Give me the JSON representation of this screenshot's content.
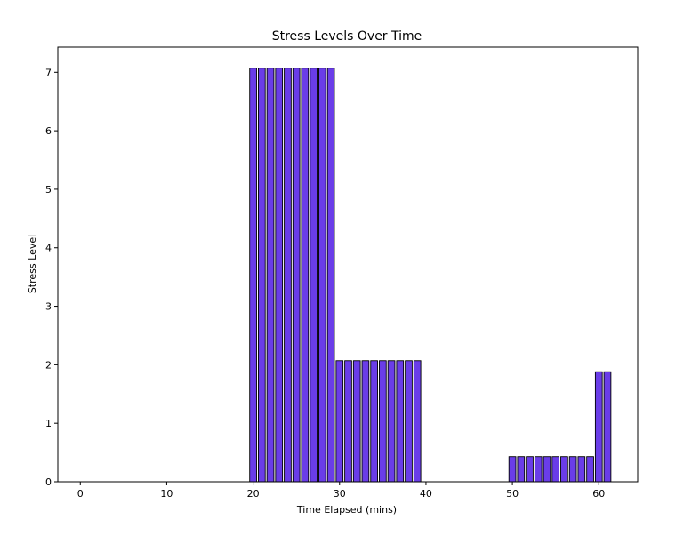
{
  "chart_data": {
    "type": "bar",
    "title": "Stress Levels Over Time",
    "xlabel": "Time Elapsed (mins)",
    "ylabel": "Stress Level",
    "xlim": [
      -2.6,
      64.5
    ],
    "ylim": [
      0,
      7.43
    ],
    "xticks": [
      0,
      10,
      20,
      30,
      40,
      50,
      60
    ],
    "yticks": [
      0,
      1,
      2,
      3,
      4,
      5,
      6,
      7
    ],
    "bar_color": "#6a3de8",
    "edge_color": "#000000",
    "grid": false,
    "x": [
      0,
      1,
      2,
      3,
      4,
      5,
      6,
      7,
      8,
      9,
      10,
      11,
      12,
      13,
      14,
      15,
      16,
      17,
      18,
      19,
      20,
      21,
      22,
      23,
      24,
      25,
      26,
      27,
      28,
      29,
      30,
      31,
      32,
      33,
      34,
      35,
      36,
      37,
      38,
      39,
      40,
      41,
      42,
      43,
      44,
      45,
      46,
      47,
      48,
      49,
      50,
      51,
      52,
      53,
      54,
      55,
      56,
      57,
      58,
      59,
      60,
      61
    ],
    "values": [
      0,
      0,
      0,
      0,
      0,
      0,
      0,
      0,
      0,
      0,
      0,
      0,
      0,
      0,
      0,
      0,
      0,
      0,
      0,
      0,
      7.07,
      7.07,
      7.07,
      7.07,
      7.07,
      7.07,
      7.07,
      7.07,
      7.07,
      7.07,
      2.07,
      2.07,
      2.07,
      2.07,
      2.07,
      2.07,
      2.07,
      2.07,
      2.07,
      2.07,
      0,
      0,
      0,
      0,
      0,
      0,
      0,
      0,
      0,
      0,
      0.43,
      0.43,
      0.43,
      0.43,
      0.43,
      0.43,
      0.43,
      0.43,
      0.43,
      0.43,
      1.88,
      1.88
    ]
  }
}
